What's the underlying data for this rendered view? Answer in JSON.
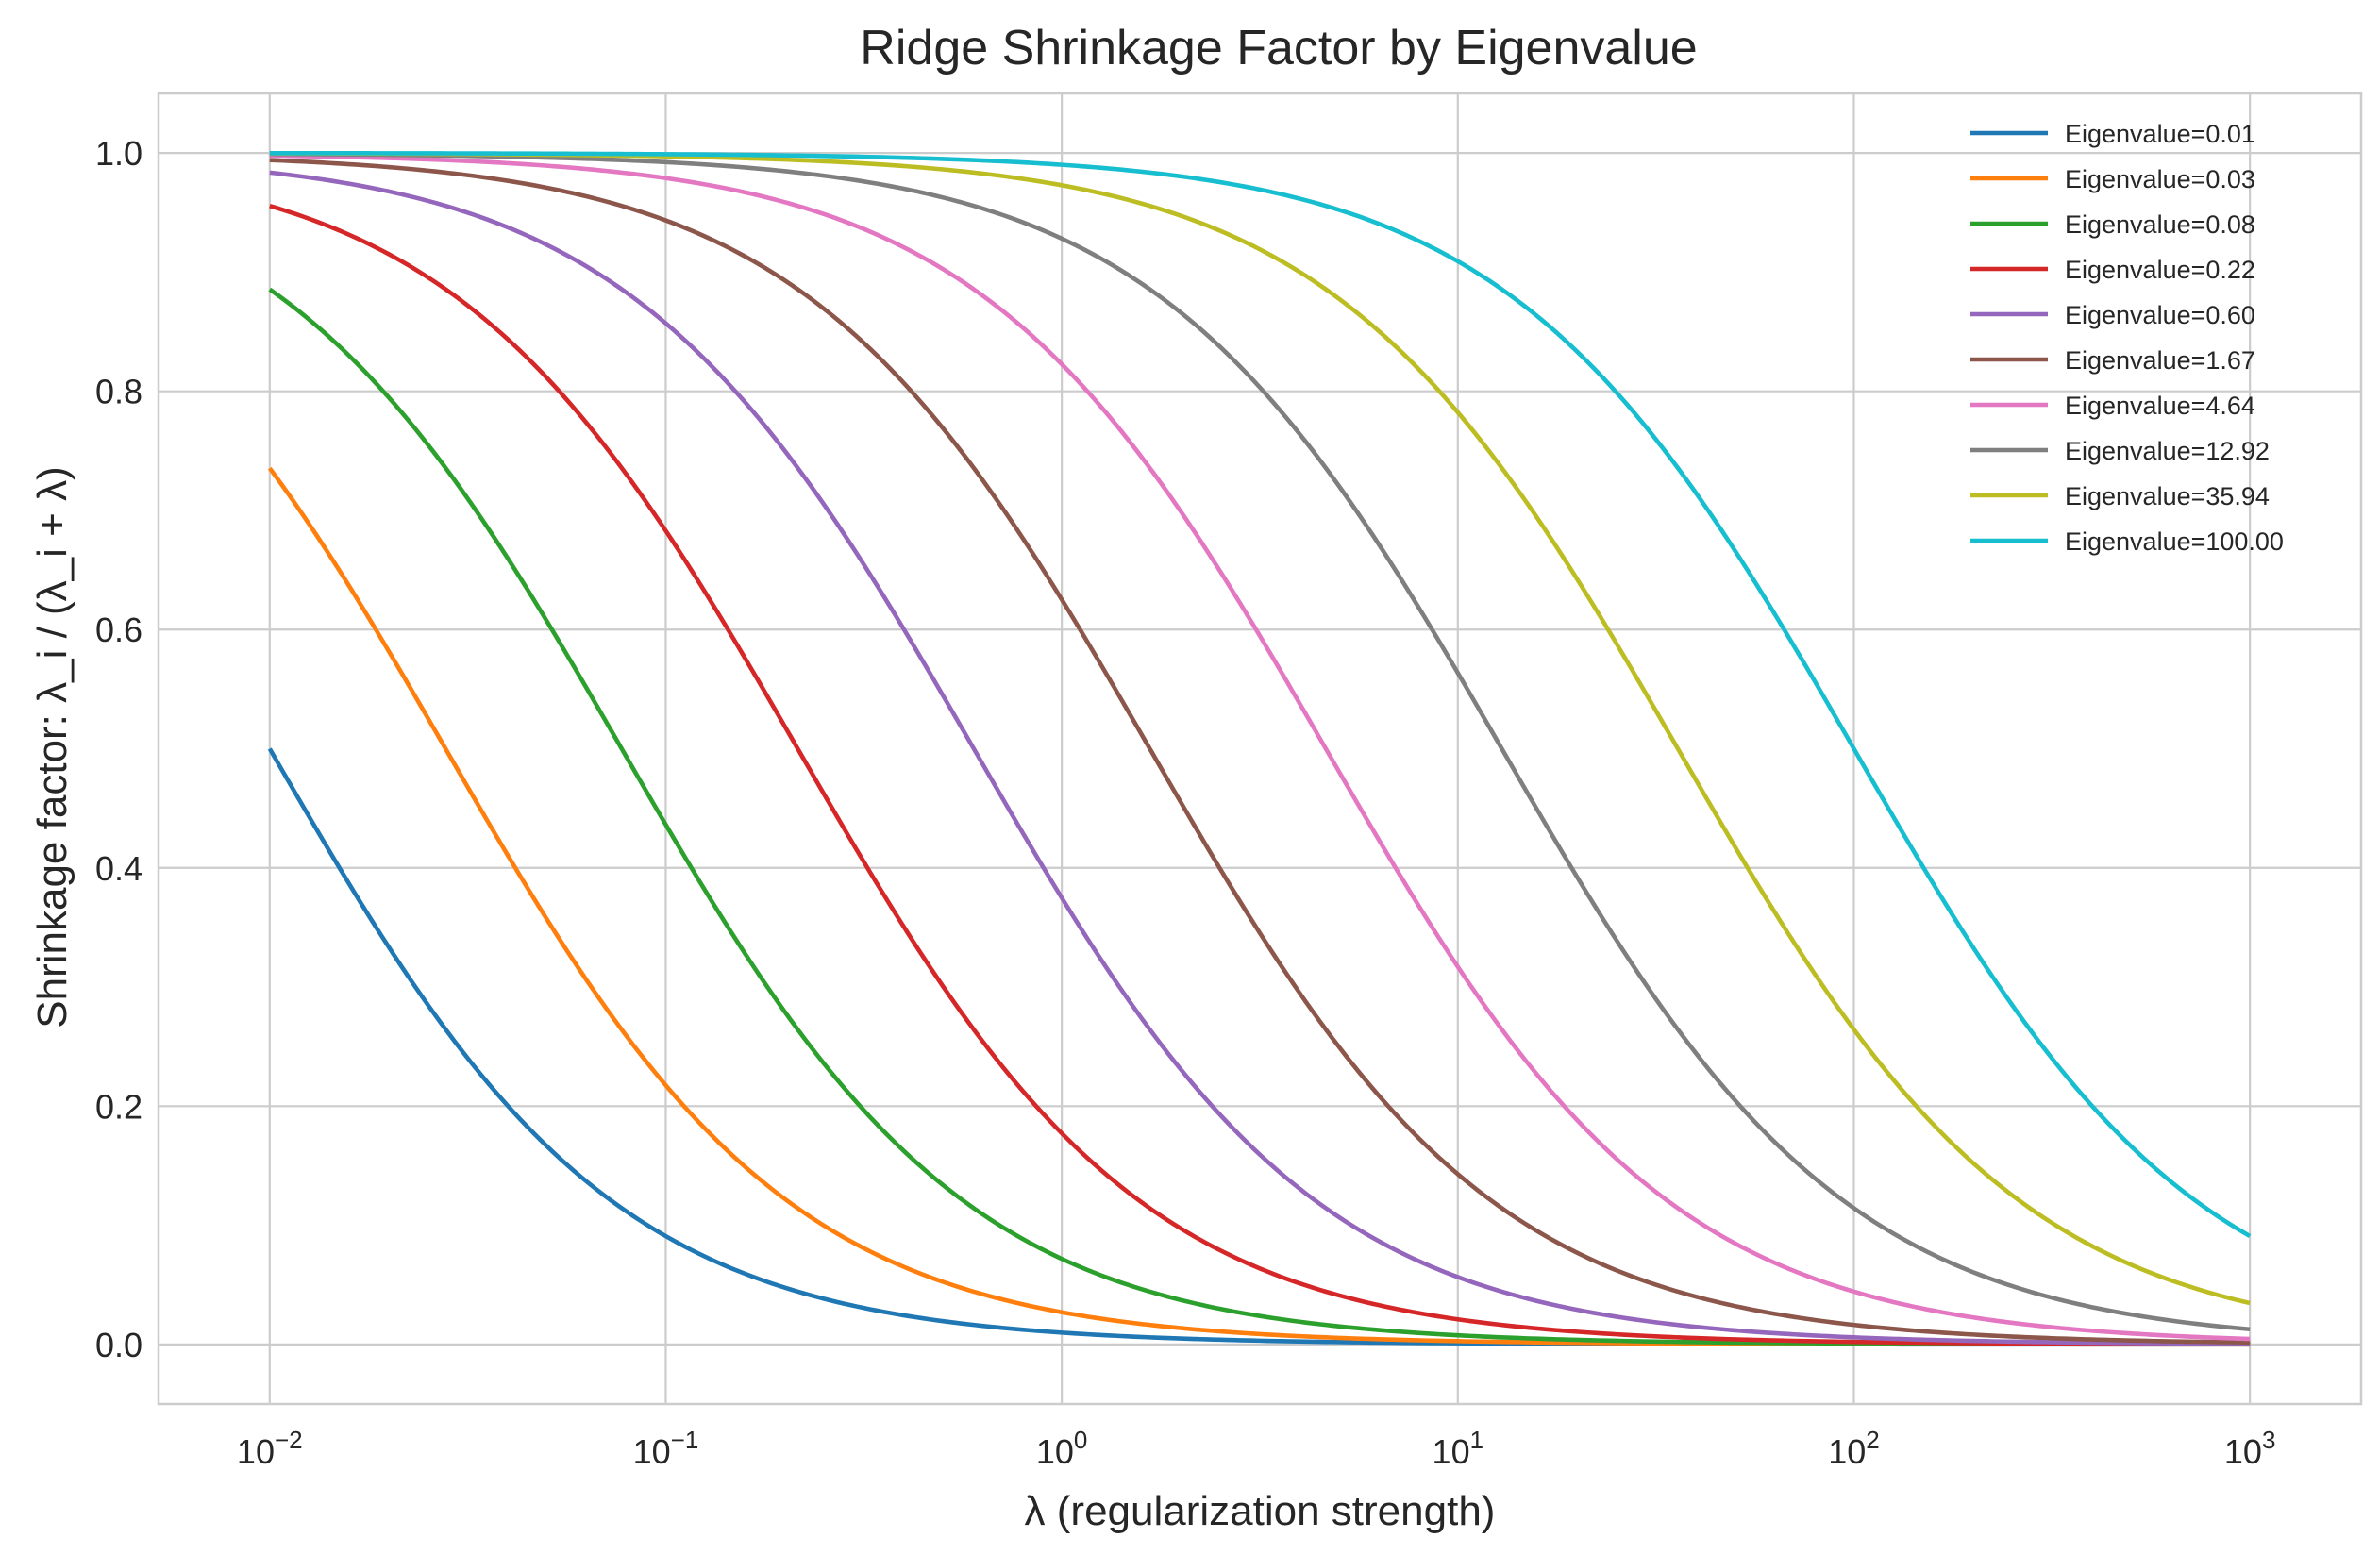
{
  "chart_data": {
    "type": "line",
    "title": "Ridge Shrinkage Factor by Eigenvalue",
    "xlabel": "λ (regularization strength)",
    "ylabel": "Shrinkage factor: λ_i / (λ_i + λ)",
    "xscale": "log",
    "xlim": [
      0.00524,
      1909
    ],
    "ylim": [
      -0.05,
      1.05
    ],
    "grid": true,
    "legend_position": "top-right",
    "x_ticks": [
      {
        "value": 0.01,
        "base": "10",
        "exp": "−2"
      },
      {
        "value": 0.1,
        "base": "10",
        "exp": "−1"
      },
      {
        "value": 1,
        "base": "10",
        "exp": "0"
      },
      {
        "value": 10,
        "base": "10",
        "exp": "1"
      },
      {
        "value": 100,
        "base": "10",
        "exp": "2"
      },
      {
        "value": 1000,
        "base": "10",
        "exp": "3"
      }
    ],
    "y_ticks": [
      {
        "value": 0.0,
        "label": "0.0"
      },
      {
        "value": 0.2,
        "label": "0.2"
      },
      {
        "value": 0.4,
        "label": "0.4"
      },
      {
        "value": 0.6,
        "label": "0.6"
      },
      {
        "value": 0.8,
        "label": "0.8"
      },
      {
        "value": 1.0,
        "label": "1.0"
      }
    ],
    "x_range": [
      0.01,
      1000
    ],
    "series": [
      {
        "name": "Eigenvalue=0.01",
        "eigenvalue": 0.01,
        "color": "#1f77b4"
      },
      {
        "name": "Eigenvalue=0.03",
        "eigenvalue": 0.0278,
        "color": "#ff7f0e"
      },
      {
        "name": "Eigenvalue=0.08",
        "eigenvalue": 0.0774,
        "color": "#2ca02c"
      },
      {
        "name": "Eigenvalue=0.22",
        "eigenvalue": 0.2154,
        "color": "#d62728"
      },
      {
        "name": "Eigenvalue=0.60",
        "eigenvalue": 0.5995,
        "color": "#9467bd"
      },
      {
        "name": "Eigenvalue=1.67",
        "eigenvalue": 1.6681,
        "color": "#8c564b"
      },
      {
        "name": "Eigenvalue=4.64",
        "eigenvalue": 4.6416,
        "color": "#e377c2"
      },
      {
        "name": "Eigenvalue=12.92",
        "eigenvalue": 12.9155,
        "color": "#7f7f7f"
      },
      {
        "name": "Eigenvalue=35.94",
        "eigenvalue": 35.9381,
        "color": "#bcbd22"
      },
      {
        "name": "Eigenvalue=100.00",
        "eigenvalue": 100.0,
        "color": "#17becf"
      }
    ]
  }
}
